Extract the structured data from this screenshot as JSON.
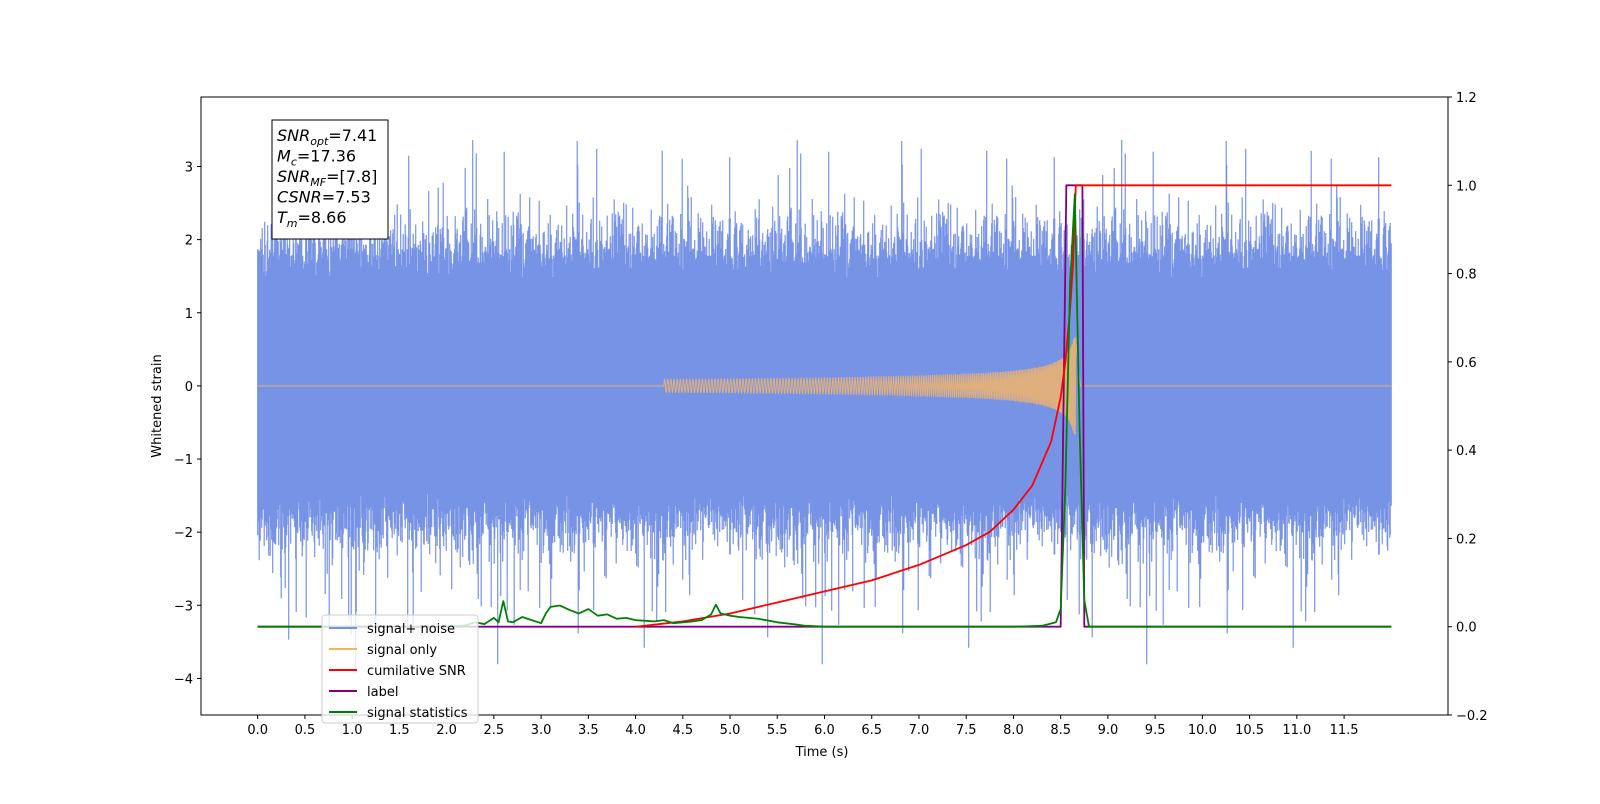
{
  "chart_data": {
    "type": "line",
    "title": "",
    "xlabel": "Time (s)",
    "ylabel": "Whitened strain",
    "xlim": [
      -0.6,
      12.6
    ],
    "ylim": [
      -4.5,
      3.95
    ],
    "y2lim": [
      -0.2,
      1.2
    ],
    "x_ticks": [
      0.0,
      0.5,
      1.0,
      1.5,
      2.0,
      2.5,
      3.0,
      3.5,
      4.0,
      4.5,
      5.0,
      5.5,
      6.0,
      6.5,
      7.0,
      7.5,
      8.0,
      8.5,
      9.0,
      9.5,
      10.0,
      10.5,
      11.0,
      11.5
    ],
    "x_tick_labels": [
      "0.0",
      "0.5",
      "1.0",
      "1.5",
      "2.0",
      "2.5",
      "3.0",
      "3.5",
      "4.0",
      "4.5",
      "5.0",
      "5.5",
      "6.0",
      "6.5",
      "7.0",
      "7.5",
      "8.0",
      "8.5",
      "9.0",
      "9.5",
      "10.0",
      "10.5",
      "11.0",
      "11.5"
    ],
    "y_ticks": [
      -4,
      -3,
      -2,
      -1,
      0,
      1,
      2,
      3
    ],
    "y_tick_labels": [
      "−4",
      "−3",
      "−2",
      "−1",
      "0",
      "1",
      "2",
      "3"
    ],
    "y2_ticks": [
      -0.2,
      0.0,
      0.2,
      0.4,
      0.6,
      0.8,
      1.0,
      1.2
    ],
    "y2_tick_labels": [
      "−0.2",
      "0.0",
      "0.2",
      "0.4",
      "0.6",
      "0.8",
      "1.0",
      "1.2"
    ],
    "grid": false,
    "legend_placement": "lower-left",
    "annotation": {
      "lines": [
        {
          "main": "SNR",
          "sub": "opt",
          "rest": "=7.41"
        },
        {
          "main": "M",
          "sub": "c",
          "rest": "=17.36"
        },
        {
          "main": "SNR",
          "sub": "MF",
          "rest": "=[7.8]"
        },
        {
          "main": "CSNR",
          "sub": "",
          "rest": "=7.53"
        },
        {
          "main": "T",
          "sub": "m",
          "rest": "=8.66"
        }
      ]
    },
    "noise": {
      "t_start": 0.0,
      "t_end": 12.0,
      "typical_min": -1.8,
      "typical_max": 1.8,
      "extreme_max": 3.58,
      "extreme_min": -4.1
    },
    "series": [
      {
        "name": "signal+ noise",
        "axis": "left",
        "color": "#7793e6",
        "x": [],
        "y": []
      },
      {
        "name": "signal only",
        "axis": "left",
        "color": "#f2b46b",
        "chirp": {
          "t_start": 4.3,
          "t_merge": 8.66,
          "peak_amplitude": 0.6,
          "f_start": 30,
          "f_end": 80
        }
      },
      {
        "name": "cumilative SNR",
        "axis": "right",
        "color": "#ff0000",
        "x": [
          4.0,
          4.5,
          5.0,
          5.5,
          6.0,
          6.5,
          7.0,
          7.5,
          7.75,
          8.0,
          8.2,
          8.4,
          8.5,
          8.55,
          8.6,
          8.63,
          8.66,
          12.0
        ],
        "y": [
          0.0,
          0.012,
          0.03,
          0.055,
          0.08,
          0.105,
          0.14,
          0.185,
          0.215,
          0.265,
          0.32,
          0.42,
          0.52,
          0.6,
          0.72,
          0.82,
          1.0,
          1.0
        ]
      },
      {
        "name": "label",
        "axis": "right",
        "color": "#800080",
        "x": [
          0.0,
          8.5,
          8.56,
          8.73,
          8.75,
          12.0
        ],
        "y": [
          0.0,
          0.0,
          1.0,
          1.0,
          0.0,
          0.0
        ]
      },
      {
        "name": "signal statistics",
        "axis": "right",
        "color": "#008000",
        "x": [
          0.0,
          2.0,
          2.2,
          2.3,
          2.4,
          2.5,
          2.55,
          2.6,
          2.65,
          2.7,
          2.8,
          2.9,
          3.0,
          3.05,
          3.1,
          3.2,
          3.3,
          3.4,
          3.5,
          3.6,
          3.7,
          3.8,
          3.9,
          4.0,
          4.2,
          4.3,
          4.4,
          4.5,
          4.6,
          4.7,
          4.8,
          4.85,
          4.9,
          5.0,
          5.1,
          5.3,
          5.5,
          5.7,
          5.8,
          6.0,
          8.0,
          8.3,
          8.45,
          8.5,
          8.55,
          8.6,
          8.65,
          8.7,
          8.75,
          8.8,
          12.0
        ],
        "y": [
          0.0,
          0.0,
          0.003,
          0.01,
          0.006,
          0.02,
          0.01,
          0.058,
          0.012,
          0.01,
          0.022,
          0.015,
          0.008,
          0.03,
          0.045,
          0.048,
          0.038,
          0.03,
          0.04,
          0.025,
          0.028,
          0.018,
          0.02,
          0.015,
          0.012,
          0.015,
          0.008,
          0.01,
          0.012,
          0.015,
          0.028,
          0.05,
          0.03,
          0.025,
          0.022,
          0.018,
          0.01,
          0.005,
          0.002,
          0.0,
          0.0,
          0.002,
          0.01,
          0.04,
          0.32,
          0.78,
          0.98,
          0.45,
          0.06,
          0.0,
          0.0
        ]
      }
    ]
  }
}
